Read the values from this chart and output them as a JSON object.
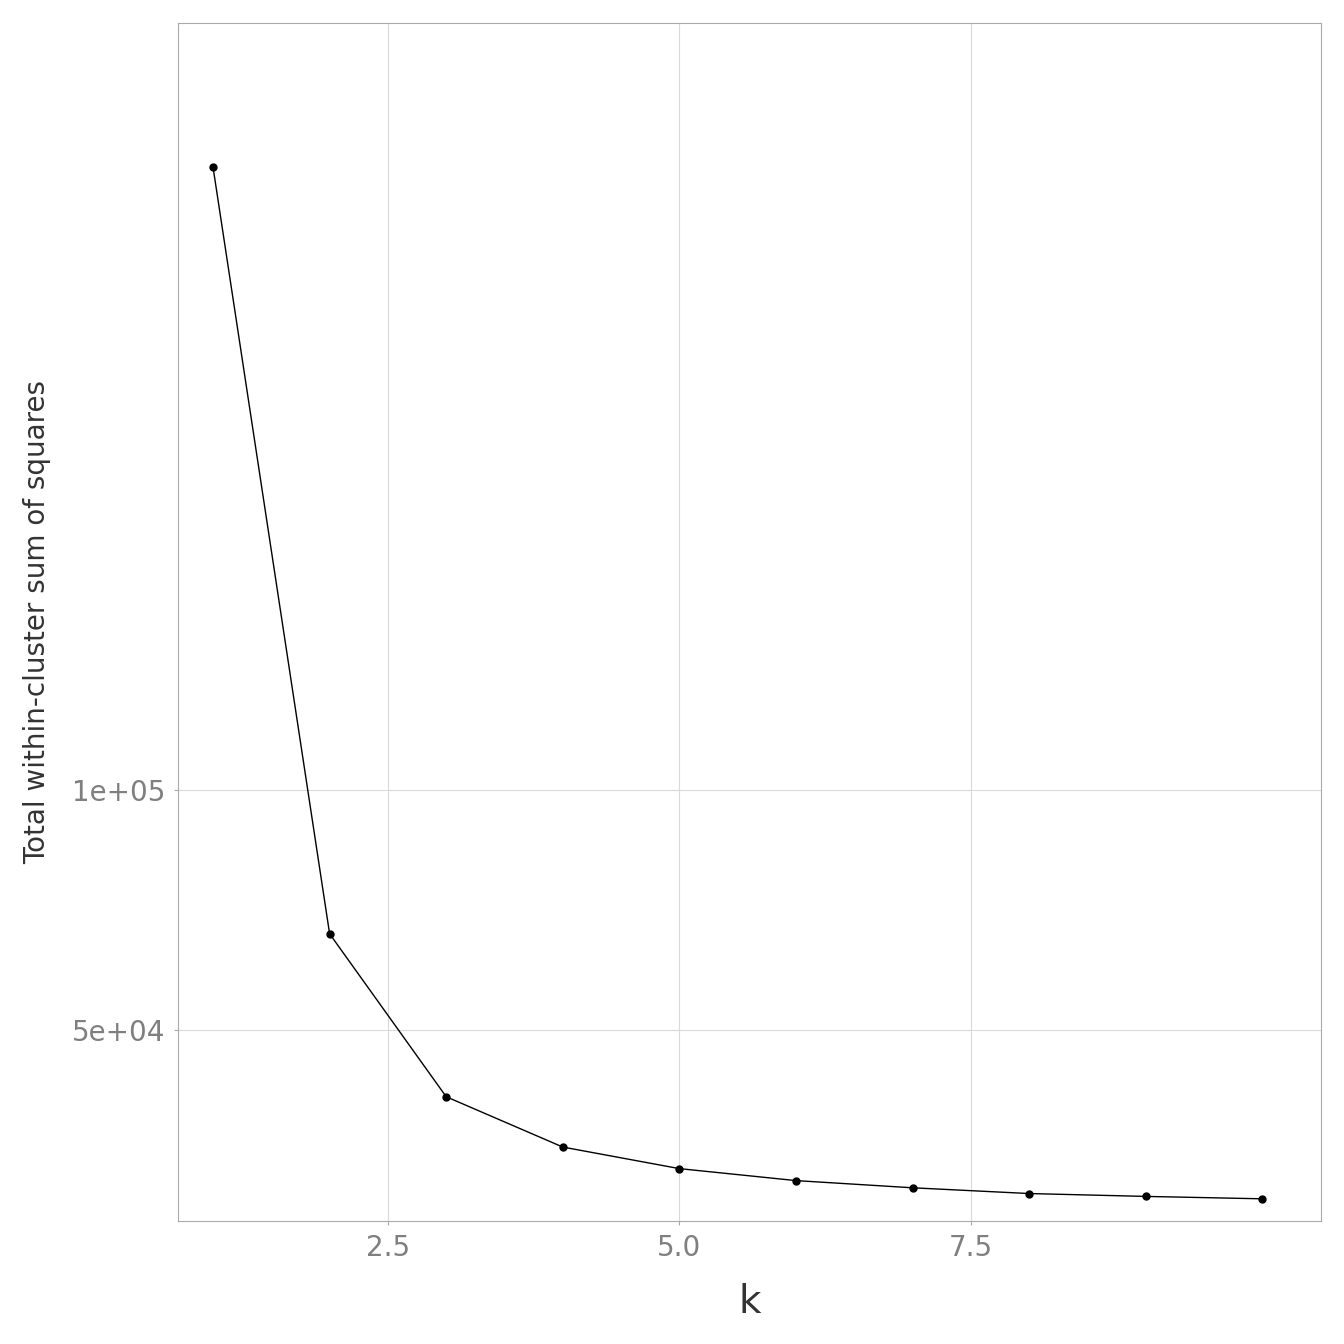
{
  "x": [
    1,
    2,
    3,
    4,
    5,
    6,
    7,
    8,
    9,
    10
  ],
  "y": [
    230000,
    70000,
    36000,
    25500,
    21000,
    18500,
    17000,
    15800,
    15200,
    14700
  ],
  "xlabel": "k",
  "ylabel": "Total within-cluster sum of squares",
  "line_color": "#000000",
  "marker_color": "#000000",
  "marker_size": 5,
  "line_width": 1.0,
  "background_color": "#ffffff",
  "grid_color": "#d9d9d9",
  "tick_label_color": "#7f7f7f",
  "axis_label_color": "#333333",
  "yticks": [
    50000,
    100000
  ],
  "ytick_labels": [
    "5e+04",
    "1e+05"
  ],
  "xticks": [
    2.5,
    5.0,
    7.5
  ],
  "xtick_labels": [
    "2.5",
    "5.0",
    "7.5"
  ],
  "xlim": [
    0.7,
    10.5
  ],
  "ylim": [
    10000,
    260000
  ]
}
